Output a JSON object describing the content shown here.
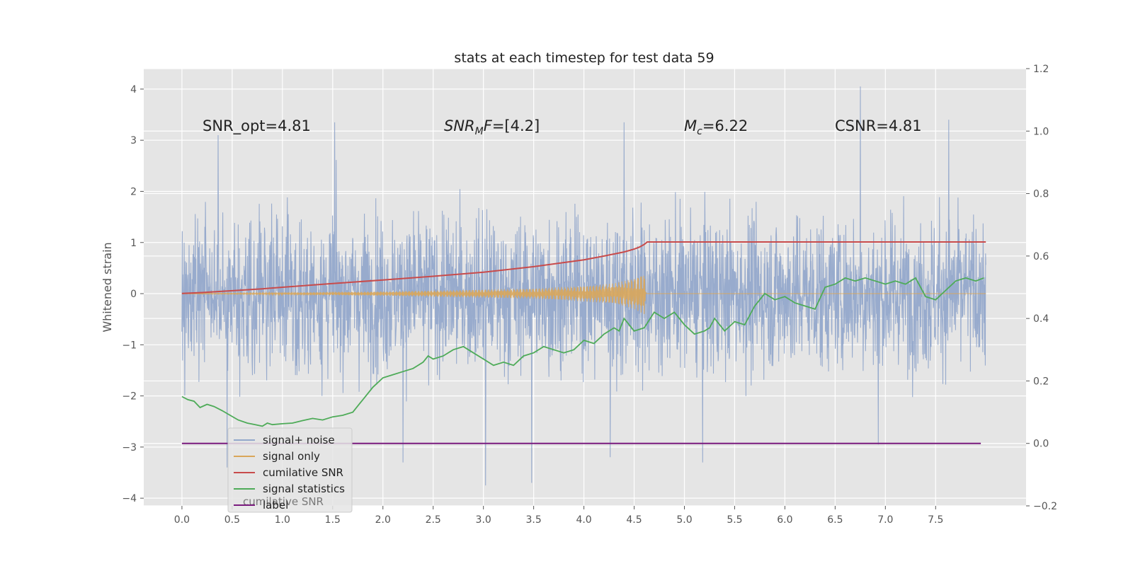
{
  "chart_data": {
    "type": "line",
    "title": "stats at each timestep for test data 59",
    "ylabel": "Whitened strain",
    "y2label": "",
    "xlim": [
      -0.38,
      8.4
    ],
    "ylim": [
      -4.15,
      4.4
    ],
    "y2lim": [
      -0.2,
      1.2
    ],
    "x_ticks": [
      "0.0",
      "0.5",
      "1.0",
      "1.5",
      "2.0",
      "2.5",
      "3.0",
      "3.5",
      "4.0",
      "4.5",
      "5.0",
      "5.5",
      "6.0",
      "6.5",
      "7.0",
      "7.5"
    ],
    "y_ticks": [
      "4",
      "3",
      "2",
      "1",
      "0",
      "−1",
      "−2",
      "−3",
      "−4"
    ],
    "y2_ticks": [
      "1.2",
      "1.0",
      "0.8",
      "0.6",
      "0.4",
      "0.2",
      "0.0",
      "−0.2"
    ],
    "annotations": {
      "snr_opt": "SNR_opt=4.81",
      "snr_mf_main": "SNR",
      "snr_mf_sub": "M",
      "snr_mf_f": "F",
      "snr_mf_value": "=[4.2]",
      "mc_main": "M",
      "mc_sub": "c",
      "mc_value": "=6.22",
      "csnr": "CSNR=4.81"
    },
    "grid": true,
    "legend_position": "lower-left",
    "legend_ghost_text": "cumilative SNR",
    "colors": {
      "background": "#e5e5e5",
      "grid": "#ffffff",
      "signal_noise": "#93a8cb",
      "signal_only": "#d9a65a",
      "cumulative_snr": "#c84b4b",
      "signal_statistics": "#4eab58",
      "label": "#7a1b7e"
    },
    "series": [
      {
        "name": "signal+ noise",
        "axis": "left",
        "description_values": "white-noise strain between about -3.8 and 4.0 across 0 to 8 s",
        "x_range": [
          0.0,
          8.0
        ],
        "envelope": [
          -2.4,
          2.4
        ],
        "peaks": [
          [
            0.36,
            3.1
          ],
          [
            0.45,
            -3.4
          ],
          [
            1.52,
            3.35
          ],
          [
            2.2,
            -3.3
          ],
          [
            3.02,
            -3.75
          ],
          [
            3.48,
            -3.7
          ],
          [
            4.26,
            -3.2
          ],
          [
            4.4,
            3.35
          ],
          [
            5.18,
            -3.3
          ],
          [
            6.75,
            4.05
          ],
          [
            7.63,
            3.4
          ],
          [
            6.93,
            -2.95
          ]
        ]
      },
      {
        "name": "signal only",
        "axis": "left",
        "x": [
          0.0,
          0.5,
          1.0,
          1.5,
          2.0,
          2.5,
          3.0,
          3.5,
          4.0,
          4.3,
          4.5,
          4.6,
          4.62,
          8.0
        ],
        "amplitude": [
          0.005,
          0.01,
          0.02,
          0.03,
          0.04,
          0.06,
          0.08,
          0.1,
          0.15,
          0.2,
          0.3,
          0.4,
          0.0,
          0.0
        ]
      },
      {
        "name": "cumilative SNR",
        "axis": "right",
        "x": [
          0.0,
          0.2,
          0.4,
          0.6,
          0.8,
          1.0,
          1.5,
          2.0,
          2.5,
          3.0,
          3.5,
          4.0,
          4.2,
          4.4,
          4.5,
          4.55,
          4.6,
          4.63,
          8.0
        ],
        "y": [
          0.48,
          0.483,
          0.487,
          0.491,
          0.495,
          0.5,
          0.512,
          0.523,
          0.535,
          0.548,
          0.566,
          0.588,
          0.6,
          0.613,
          0.622,
          0.628,
          0.637,
          0.645,
          0.645
        ]
      },
      {
        "name": "signal statistics",
        "axis": "right",
        "x": [
          0.0,
          0.06,
          0.12,
          0.18,
          0.25,
          0.32,
          0.4,
          0.48,
          0.56,
          0.65,
          0.73,
          0.8,
          0.85,
          0.9,
          1.0,
          1.1,
          1.2,
          1.3,
          1.4,
          1.5,
          1.6,
          1.7,
          1.75,
          1.8,
          1.9,
          2.0,
          2.1,
          2.2,
          2.3,
          2.35,
          2.4,
          2.45,
          2.5,
          2.6,
          2.7,
          2.8,
          2.9,
          3.0,
          3.1,
          3.2,
          3.3,
          3.4,
          3.5,
          3.6,
          3.7,
          3.8,
          3.9,
          4.0,
          4.1,
          4.2,
          4.3,
          4.35,
          4.4,
          4.5,
          4.6,
          4.7,
          4.8,
          4.9,
          5.0,
          5.1,
          5.2,
          5.25,
          5.3,
          5.4,
          5.5,
          5.6,
          5.7,
          5.8,
          5.9,
          6.0,
          6.1,
          6.2,
          6.3,
          6.4,
          6.5,
          6.6,
          6.7,
          6.8,
          6.9,
          7.0,
          7.1,
          7.2,
          7.3,
          7.4,
          7.5,
          7.6,
          7.7,
          7.8,
          7.9,
          7.98
        ],
        "y": [
          0.15,
          0.14,
          0.135,
          0.115,
          0.125,
          0.118,
          0.105,
          0.09,
          0.075,
          0.065,
          0.06,
          0.055,
          0.065,
          0.06,
          0.063,
          0.065,
          0.073,
          0.08,
          0.075,
          0.085,
          0.09,
          0.1,
          0.12,
          0.14,
          0.18,
          0.21,
          0.22,
          0.23,
          0.24,
          0.25,
          0.26,
          0.28,
          0.27,
          0.28,
          0.3,
          0.31,
          0.29,
          0.27,
          0.25,
          0.26,
          0.25,
          0.28,
          0.29,
          0.31,
          0.3,
          0.29,
          0.3,
          0.33,
          0.32,
          0.35,
          0.37,
          0.36,
          0.4,
          0.36,
          0.37,
          0.42,
          0.4,
          0.42,
          0.38,
          0.35,
          0.36,
          0.37,
          0.4,
          0.36,
          0.39,
          0.38,
          0.44,
          0.48,
          0.46,
          0.47,
          0.45,
          0.44,
          0.43,
          0.5,
          0.51,
          0.53,
          0.52,
          0.53,
          0.52,
          0.51,
          0.52,
          0.51,
          0.53,
          0.47,
          0.46,
          0.49,
          0.52,
          0.53,
          0.52,
          0.53
        ]
      },
      {
        "name": "label",
        "axis": "right",
        "x": [
          0.0,
          7.95
        ],
        "y": [
          0.0,
          0.0
        ]
      }
    ]
  }
}
